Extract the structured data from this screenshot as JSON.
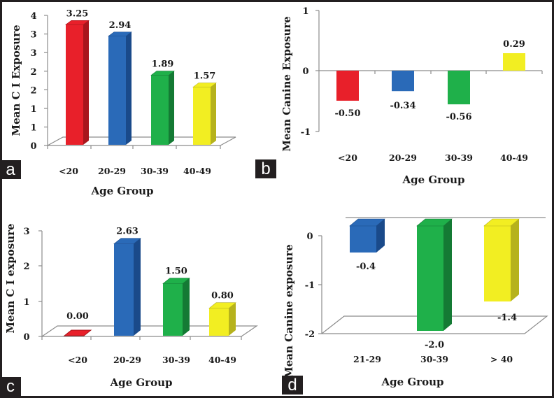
{
  "figure": {
    "panel_labels": [
      "a",
      "b",
      "c",
      "d"
    ]
  },
  "colors": {
    "red": "#e8202a",
    "red_side": "#a8161c",
    "blue": "#2a6ab8",
    "blue_side": "#1a4a8a",
    "green": "#1fb04a",
    "green_side": "#147a34",
    "yellow": "#f2ee22",
    "yellow_side": "#b6b21c",
    "axis": "#8c8c8c"
  },
  "chart_data": [
    {
      "panel": "a",
      "type": "bar",
      "style": "3d",
      "title": "",
      "xlabel": "Age Group",
      "ylabel": "Mean C I Exposure",
      "categories": [
        "<20",
        "20-29",
        "30-39",
        "40-49"
      ],
      "values": [
        3.25,
        2.94,
        1.89,
        1.57
      ],
      "value_labels": [
        "3.25",
        "2.94",
        "1.89",
        "1.57"
      ],
      "bar_colors": [
        "red",
        "blue",
        "green",
        "yellow"
      ],
      "ytick_labels": [
        "4",
        "3",
        "3",
        "2",
        "2",
        "1",
        "1",
        "0"
      ],
      "ylim": [
        0,
        3.5
      ],
      "grid": false,
      "legend": "none"
    },
    {
      "panel": "b",
      "type": "bar",
      "style": "2d",
      "title": "",
      "xlabel": "Age Group",
      "ylabel": "Mean Canine Exposure",
      "categories": [
        "<20",
        "20-29",
        "30-39",
        "40-49"
      ],
      "values": [
        -0.5,
        -0.34,
        -0.56,
        0.29
      ],
      "value_labels": [
        "-0.50",
        "-0.34",
        "-0.56",
        "0.29"
      ],
      "bar_colors": [
        "red",
        "blue",
        "green",
        "yellow"
      ],
      "ytick_labels": [
        "1",
        "0",
        "-1"
      ],
      "ylim": [
        -1,
        1
      ],
      "grid": false,
      "legend": "none"
    },
    {
      "panel": "c",
      "type": "bar",
      "style": "3d",
      "title": "",
      "xlabel": "Age Group",
      "ylabel": "Mean C I exposure",
      "categories": [
        "<20",
        "20-29",
        "30-39",
        "40-49"
      ],
      "values": [
        0.0,
        2.63,
        1.5,
        0.8
      ],
      "value_labels": [
        "0.00",
        "2.63",
        "1.50",
        "0.80"
      ],
      "bar_colors": [
        "red",
        "blue",
        "green",
        "yellow"
      ],
      "ytick_labels": [
        "3",
        "2",
        "1",
        "0"
      ],
      "ylim": [
        0,
        3
      ],
      "grid": false,
      "legend": "none"
    },
    {
      "panel": "d",
      "type": "bar",
      "style": "3d",
      "title": "",
      "xlabel": "Age Group",
      "ylabel": "Mean Canine exposure",
      "categories": [
        "21-29",
        "30-39",
        "> 40"
      ],
      "values": [
        -0.4,
        -2.0,
        -1.4
      ],
      "value_labels": [
        "-0.4",
        "-2.0",
        "-1.4"
      ],
      "bar_colors": [
        "blue",
        "green",
        "yellow"
      ],
      "ytick_labels": [
        "0",
        "-1",
        "-2"
      ],
      "ylim": [
        -2,
        0
      ],
      "grid": false,
      "legend": "none"
    }
  ]
}
